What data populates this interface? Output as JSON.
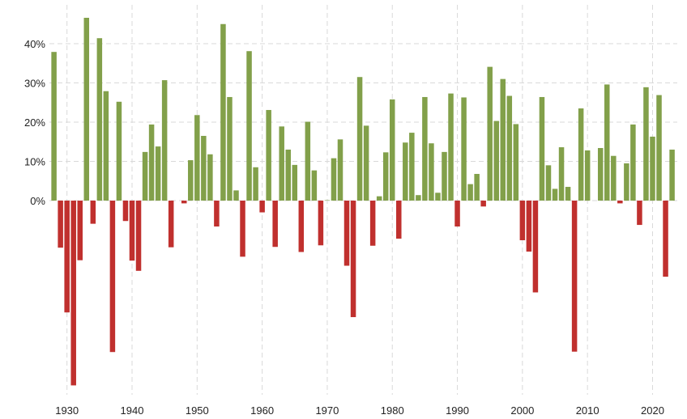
{
  "chart_data": {
    "type": "bar",
    "title": "",
    "xlabel": "",
    "ylabel": "",
    "ylim": [
      -49,
      49
    ],
    "xlim": [
      1927.3,
      2023.8
    ],
    "y_ticks": [
      0,
      10,
      20,
      30,
      40
    ],
    "y_tick_labels": [
      "0%",
      "10%",
      "20%",
      "30%",
      "40%"
    ],
    "x_ticks": [
      1930,
      1940,
      1950,
      1960,
      1970,
      1980,
      1990,
      2000,
      2010,
      2020
    ],
    "x_tick_labels": [
      "1930",
      "1940",
      "1950",
      "1960",
      "1970",
      "1980",
      "1990",
      "2000",
      "2010",
      "2020"
    ],
    "grid": true,
    "legend": "none",
    "colors": {
      "positive": "#82a04a",
      "negative": "#c0302e",
      "grid": "#d9d9d9",
      "text": "#222222"
    },
    "x": [
      1928,
      1929,
      1930,
      1931,
      1932,
      1933,
      1934,
      1935,
      1936,
      1937,
      1938,
      1939,
      1940,
      1941,
      1942,
      1943,
      1944,
      1945,
      1946,
      1947,
      1948,
      1949,
      1950,
      1951,
      1952,
      1953,
      1954,
      1955,
      1956,
      1957,
      1958,
      1959,
      1960,
      1961,
      1962,
      1963,
      1964,
      1965,
      1966,
      1967,
      1968,
      1969,
      1970,
      1971,
      1972,
      1973,
      1974,
      1975,
      1976,
      1977,
      1978,
      1979,
      1980,
      1981,
      1982,
      1983,
      1984,
      1985,
      1986,
      1987,
      1988,
      1989,
      1990,
      1991,
      1992,
      1993,
      1994,
      1995,
      1996,
      1997,
      1998,
      1999,
      2000,
      2001,
      2002,
      2003,
      2004,
      2005,
      2006,
      2007,
      2008,
      2009,
      2010,
      2011,
      2012,
      2013,
      2014,
      2015,
      2016,
      2017,
      2018,
      2019,
      2020,
      2021,
      2022,
      2023
    ],
    "values": [
      37.9,
      -12,
      -28.5,
      -47.1,
      -15.2,
      46.6,
      -5.9,
      41.4,
      27.9,
      -38.6,
      25.2,
      -5.2,
      -15.3,
      -17.9,
      12.4,
      19.4,
      13.8,
      30.7,
      -11.9,
      0,
      -0.7,
      10.3,
      21.8,
      16.5,
      11.8,
      -6.6,
      45,
      26.4,
      2.6,
      -14.3,
      38.1,
      8.5,
      -3,
      23.1,
      -11.8,
      18.9,
      13,
      9.1,
      -13.1,
      20.1,
      7.7,
      -11.4,
      0.1,
      10.8,
      15.6,
      -16.6,
      -29.7,
      31.5,
      19.1,
      -11.5,
      1.1,
      12.3,
      25.8,
      -9.7,
      14.8,
      17.3,
      1.4,
      26.4,
      14.6,
      2,
      12.4,
      27.3,
      -6.6,
      26.3,
      4.2,
      6.8,
      -1.5,
      34.1,
      20.3,
      31,
      26.7,
      19.5,
      -10.1,
      -13,
      -23.4,
      26.4,
      9,
      3,
      13.6,
      3.5,
      -38.5,
      23.5,
      12.8,
      0,
      13.4,
      29.6,
      11.4,
      -0.7,
      9.5,
      19.4,
      -6.2,
      28.9,
      16.3,
      26.9,
      -19.4,
      13
    ]
  }
}
